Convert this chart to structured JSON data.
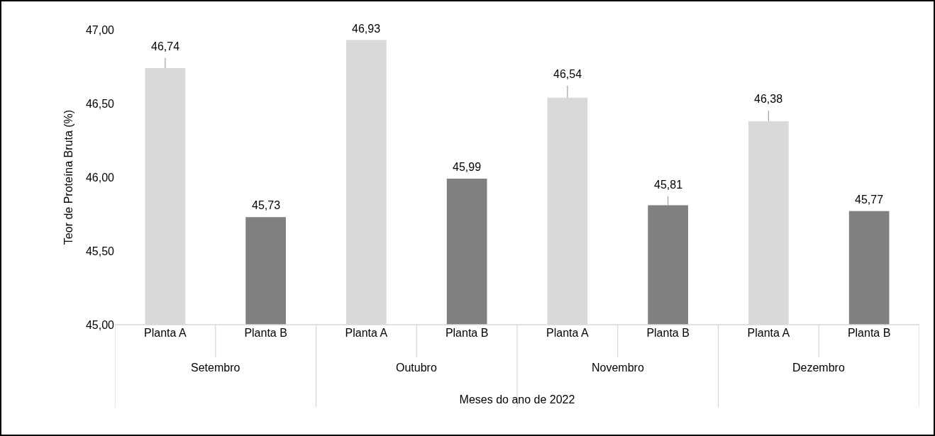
{
  "chart_data": {
    "type": "bar",
    "xlabel": "Meses do ano de 2022",
    "ylabel": "Teor de Proteína Bruta (%)",
    "categories": [
      "Planta A",
      "Planta B",
      "Planta A",
      "Planta B",
      "Planta A",
      "Planta B",
      "Planta A",
      "Planta B"
    ],
    "values": [
      46.74,
      45.73,
      46.93,
      45.99,
      46.54,
      45.81,
      46.38,
      45.77
    ],
    "colors": [
      "#d9d9d9",
      "#808080",
      "#d9d9d9",
      "#808080",
      "#d9d9d9",
      "#808080",
      "#d9d9d9",
      "#808080"
    ],
    "value_labels": [
      "46,74",
      "45,73",
      "46,93",
      "45,99",
      "46,54",
      "45,81",
      "46,38",
      "45,77"
    ],
    "errors": [
      [
        46.74,
        46.81
      ],
      null,
      null,
      null,
      [
        46.54,
        46.62
      ],
      [
        45.81,
        45.87
      ],
      [
        46.38,
        46.45
      ],
      null
    ],
    "annotations": [
      "Setembro",
      "Outubro",
      "Novembro",
      "Dezembro"
    ],
    "ylim": [
      45,
      47
    ],
    "yticks": [
      {
        "value": 45,
        "label": "45,00"
      },
      {
        "value": 45.5,
        "label": "45,50"
      },
      {
        "value": 46,
        "label": "46,00"
      },
      {
        "value": 46.5,
        "label": "46,50"
      },
      {
        "value": 47,
        "label": "47,00"
      }
    ],
    "grid": false,
    "legend": false
  }
}
